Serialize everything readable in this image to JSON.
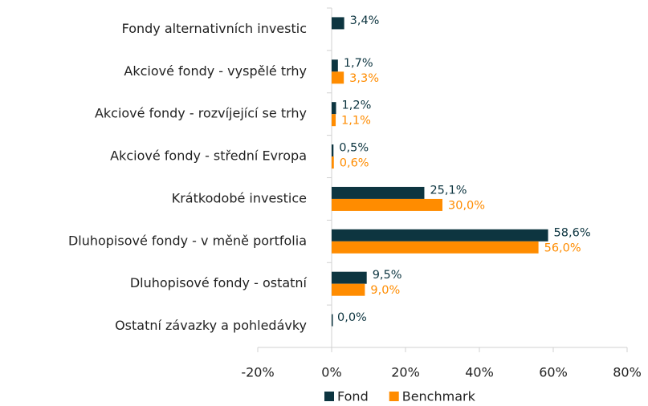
{
  "chart_data": {
    "type": "hbar",
    "categories": [
      "Fondy alternativních investic",
      "Akciové fondy - vyspělé trhy",
      "Akciové fondy - rozvíjející se trhy",
      "Akciové fondy - střední Evropa",
      "Krátkodobé investice",
      "Dluhopisové fondy - v měně portfolia",
      "Dluhopisové fondy - ostatní",
      "Ostatní závazky a pohledávky"
    ],
    "series": [
      {
        "name": "Fond",
        "color": "#0d3540",
        "values": [
          3.4,
          1.7,
          1.2,
          0.5,
          25.1,
          58.6,
          9.5,
          0.0
        ],
        "value_labels": [
          "3,4%",
          "1,7%",
          "1,2%",
          "0,5%",
          "25,1%",
          "58,6%",
          "9,5%",
          "0,0%"
        ]
      },
      {
        "name": "Benchmark",
        "color": "#ff8c00",
        "values": [
          null,
          3.3,
          1.1,
          0.6,
          30.0,
          56.0,
          9.0,
          null
        ],
        "value_labels": [
          null,
          "3,3%",
          "1,1%",
          "0,6%",
          "30,0%",
          "56,0%",
          "9,0%",
          null
        ]
      }
    ],
    "xlim": [
      -20,
      80
    ],
    "xticks": [
      {
        "value": -20,
        "label": "-20%"
      },
      {
        "value": 0,
        "label": "0%"
      },
      {
        "value": 20,
        "label": "20%"
      },
      {
        "value": 40,
        "label": "40%"
      },
      {
        "value": 60,
        "label": "60%"
      },
      {
        "value": 80,
        "label": "80%"
      }
    ],
    "legend": "bottom"
  }
}
